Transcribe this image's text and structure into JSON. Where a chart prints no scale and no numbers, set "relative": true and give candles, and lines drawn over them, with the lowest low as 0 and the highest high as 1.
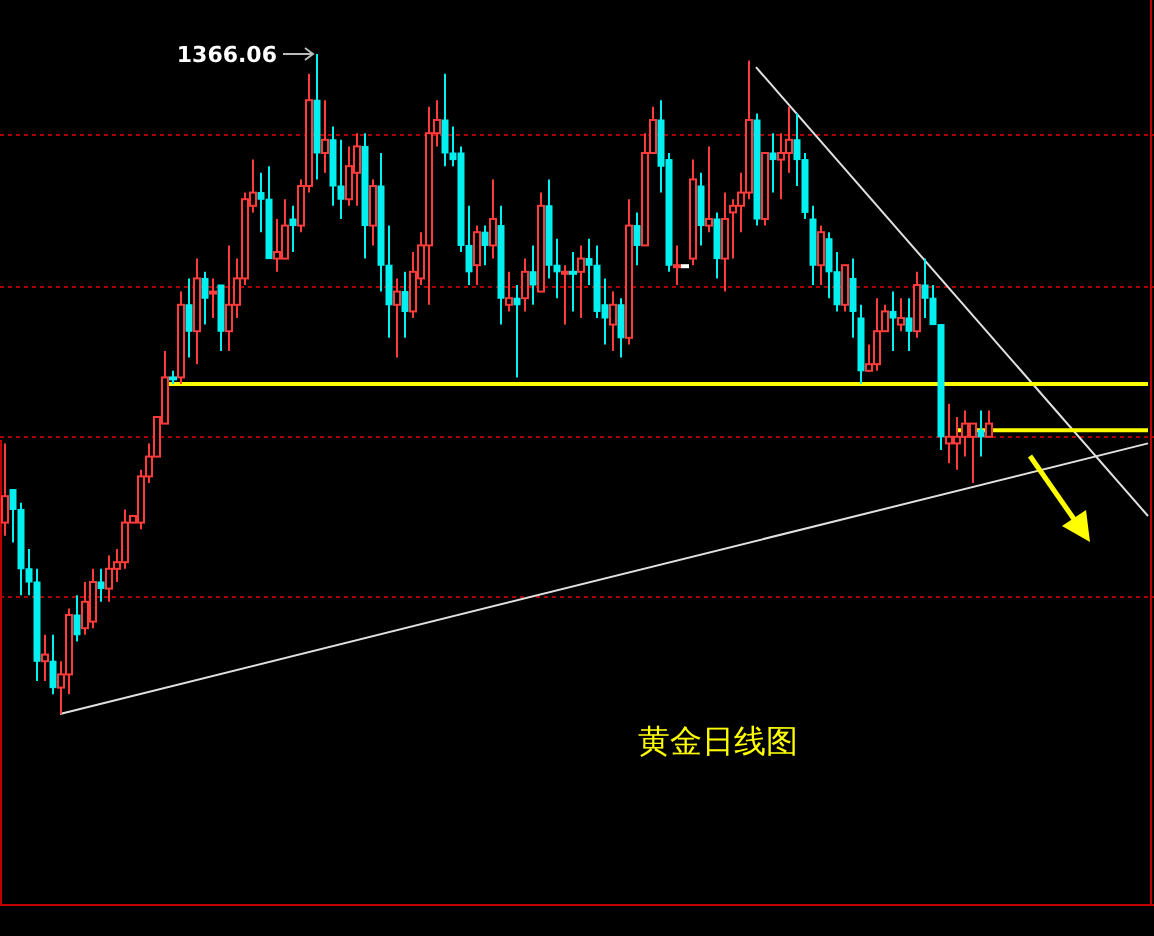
{
  "chart_data": {
    "type": "candlestick",
    "title": "黄金日线图",
    "relative": true,
    "categories": [
      null,
      null,
      null,
      null,
      null,
      null,
      null,
      null,
      null,
      null,
      null,
      null,
      null,
      null,
      null,
      null,
      null,
      null,
      null,
      null,
      null,
      null,
      null,
      null,
      null,
      null,
      null,
      null,
      null,
      null,
      null,
      null,
      null,
      null,
      null,
      null,
      null,
      null,
      null,
      null,
      null,
      null,
      null,
      null,
      null,
      null,
      null,
      null,
      null,
      null,
      null,
      null,
      null,
      null,
      null,
      null,
      null,
      null,
      null,
      null,
      null,
      null,
      null,
      null,
      null,
      null,
      null,
      null,
      null,
      null,
      null,
      null,
      null,
      null,
      null,
      null,
      null,
      null,
      null,
      null,
      null,
      null,
      null,
      null,
      null,
      null,
      null,
      null,
      null,
      null,
      null,
      null,
      null,
      null,
      null,
      null,
      null,
      null,
      null,
      null,
      null,
      null,
      null,
      null,
      null,
      null,
      null,
      null,
      null,
      null,
      null,
      null,
      null,
      null,
      null,
      null,
      null,
      null,
      null,
      null,
      null,
      null,
      null,
      null,
      null,
      null,
      null,
      null,
      null,
      null,
      null,
      null,
      null,
      null,
      null,
      null,
      null,
      null,
      null,
      null,
      null,
      null,
      null,
      null
    ],
    "ohlc": [
      [
        0.29,
        0.41,
        0.27,
        0.33
      ],
      [
        0.34,
        0.34,
        0.26,
        0.31
      ],
      [
        0.31,
        0.32,
        0.18,
        0.22
      ],
      [
        0.22,
        0.25,
        0.18,
        0.2
      ],
      [
        0.2,
        0.22,
        0.05,
        0.08
      ],
      [
        0.08,
        0.12,
        0.05,
        0.09
      ],
      [
        0.08,
        0.12,
        0.03,
        0.04
      ],
      [
        0.04,
        0.08,
        0,
        0.06
      ],
      [
        0.06,
        0.16,
        0.03,
        0.15
      ],
      [
        0.15,
        0.18,
        0.11,
        0.12
      ],
      [
        0.13,
        0.2,
        0.12,
        0.17
      ],
      [
        0.14,
        0.22,
        0.13,
        0.2
      ],
      [
        0.2,
        0.22,
        0.17,
        0.19
      ],
      [
        0.19,
        0.24,
        0.17,
        0.22
      ],
      [
        0.22,
        0.25,
        0.2,
        0.23
      ],
      [
        0.23,
        0.31,
        0.22,
        0.29
      ],
      [
        0.29,
        0.3,
        0.29,
        0.3
      ],
      [
        0.29,
        0.37,
        0.28,
        0.36
      ],
      [
        0.36,
        0.41,
        0.35,
        0.39
      ],
      [
        0.39,
        0.45,
        0.39,
        0.45
      ],
      [
        0.44,
        0.55,
        0.44,
        0.51
      ],
      [
        0.51,
        0.52,
        0.5,
        0.51
      ],
      [
        0.51,
        0.64,
        0.5,
        0.62
      ],
      [
        0.62,
        0.66,
        0.54,
        0.58
      ],
      [
        0.58,
        0.69,
        0.53,
        0.66
      ],
      [
        0.66,
        0.67,
        0.59,
        0.63
      ],
      [
        0.64,
        0.66,
        0.6,
        0.64
      ],
      [
        0.65,
        0.65,
        0.55,
        0.58
      ],
      [
        0.58,
        0.71,
        0.55,
        0.62
      ],
      [
        0.62,
        0.69,
        0.6,
        0.66
      ],
      [
        0.66,
        0.79,
        0.65,
        0.78
      ],
      [
        0.77,
        0.84,
        0.76,
        0.79
      ],
      [
        0.79,
        0.82,
        0.73,
        0.78
      ],
      [
        0.78,
        0.83,
        0.69,
        0.69
      ],
      [
        0.69,
        0.75,
        0.67,
        0.7
      ],
      [
        0.69,
        0.78,
        0.69,
        0.74
      ],
      [
        0.75,
        0.77,
        0.7,
        0.74
      ],
      [
        0.74,
        0.81,
        0.73,
        0.8
      ],
      [
        0.8,
        0.97,
        0.79,
        0.93
      ],
      [
        0.93,
        1,
        0.81,
        0.85
      ],
      [
        0.85,
        0.93,
        0.82,
        0.87
      ],
      [
        0.87,
        0.89,
        0.77,
        0.8
      ],
      [
        0.8,
        0.87,
        0.75,
        0.78
      ],
      [
        0.78,
        0.86,
        0.77,
        0.83
      ],
      [
        0.82,
        0.88,
        0.77,
        0.86
      ],
      [
        0.86,
        0.88,
        0.69,
        0.74
      ],
      [
        0.74,
        0.81,
        0.71,
        0.8
      ],
      [
        0.8,
        0.85,
        0.64,
        0.68
      ],
      [
        0.68,
        0.74,
        0.57,
        0.62
      ],
      [
        0.62,
        0.66,
        0.54,
        0.64
      ],
      [
        0.64,
        0.67,
        0.57,
        0.61
      ],
      [
        0.61,
        0.7,
        0.6,
        0.67
      ],
      [
        0.66,
        0.73,
        0.65,
        0.71
      ],
      [
        0.71,
        0.92,
        0.62,
        0.88
      ],
      [
        0.88,
        0.93,
        0.86,
        0.9
      ],
      [
        0.9,
        0.97,
        0.83,
        0.85
      ],
      [
        0.85,
        0.89,
        0.83,
        0.84
      ],
      [
        0.85,
        0.86,
        0.7,
        0.71
      ],
      [
        0.71,
        0.77,
        0.65,
        0.67
      ],
      [
        0.68,
        0.74,
        0.65,
        0.73
      ],
      [
        0.73,
        0.74,
        0.68,
        0.71
      ],
      [
        0.71,
        0.81,
        0.69,
        0.75
      ],
      [
        0.74,
        0.77,
        0.59,
        0.63
      ],
      [
        0.62,
        0.67,
        0.61,
        0.63
      ],
      [
        0.63,
        0.65,
        0.51,
        0.62
      ],
      [
        0.63,
        0.69,
        0.61,
        0.67
      ],
      [
        0.67,
        0.71,
        0.62,
        0.65
      ],
      [
        0.64,
        0.79,
        0.64,
        0.77
      ],
      [
        0.77,
        0.81,
        0.66,
        0.68
      ],
      [
        0.68,
        0.72,
        0.63,
        0.67
      ],
      [
        0.67,
        0.68,
        0.59,
        0.67
      ],
      [
        0.67,
        0.7,
        0.61,
        0.67
      ],
      [
        0.67,
        0.71,
        0.6,
        0.69
      ],
      [
        0.69,
        0.72,
        0.65,
        0.68
      ],
      [
        0.68,
        0.71,
        0.6,
        0.61
      ],
      [
        0.62,
        0.66,
        0.56,
        0.6
      ],
      [
        0.59,
        0.64,
        0.55,
        0.62
      ],
      [
        0.62,
        0.63,
        0.54,
        0.57
      ],
      [
        0.57,
        0.78,
        0.56,
        0.74
      ],
      [
        0.74,
        0.76,
        0.68,
        0.71
      ],
      [
        0.71,
        0.88,
        0.71,
        0.85
      ],
      [
        0.85,
        0.92,
        0.85,
        0.9
      ],
      [
        0.9,
        0.93,
        0.79,
        0.83
      ],
      [
        0.84,
        0.85,
        0.67,
        0.68
      ],
      [
        0.68,
        0.71,
        0.65,
        0.68
      ],
      [
        0.68,
        0.68,
        0.68,
        0.68
      ],
      [
        0.69,
        0.84,
        0.68,
        0.81
      ],
      [
        0.8,
        0.82,
        0.71,
        0.74
      ],
      [
        0.74,
        0.86,
        0.73,
        0.75
      ],
      [
        0.75,
        0.76,
        0.66,
        0.69
      ],
      [
        0.69,
        0.79,
        0.64,
        0.75
      ],
      [
        0.76,
        0.78,
        0.69,
        0.77
      ],
      [
        0.77,
        0.82,
        0.73,
        0.79
      ],
      [
        0.79,
        0.99,
        0.78,
        0.9
      ],
      [
        0.9,
        0.91,
        0.74,
        0.75
      ],
      [
        0.75,
        0.85,
        0.74,
        0.85
      ],
      [
        0.85,
        0.88,
        0.79,
        0.84
      ],
      [
        0.84,
        0.88,
        0.78,
        0.85
      ],
      [
        0.85,
        0.92,
        0.82,
        0.87
      ],
      [
        0.87,
        0.91,
        0.8,
        0.84
      ],
      [
        0.84,
        0.85,
        0.75,
        0.76
      ],
      [
        0.75,
        0.77,
        0.65,
        0.68
      ],
      [
        0.68,
        0.74,
        0.65,
        0.73
      ],
      [
        0.72,
        0.73,
        0.63,
        0.67
      ],
      [
        0.67,
        0.7,
        0.61,
        0.62
      ],
      [
        0.62,
        0.68,
        0.61,
        0.68
      ],
      [
        0.66,
        0.69,
        0.57,
        0.61
      ],
      [
        0.6,
        0.62,
        0.5,
        0.52
      ],
      [
        0.52,
        0.56,
        0.52,
        0.53
      ],
      [
        0.53,
        0.63,
        0.52,
        0.58
      ],
      [
        0.58,
        0.62,
        0.58,
        0.61
      ],
      [
        0.61,
        0.64,
        0.55,
        0.6
      ],
      [
        0.59,
        0.63,
        0.58,
        0.6
      ],
      [
        0.6,
        0.63,
        0.55,
        0.58
      ],
      [
        0.58,
        0.67,
        0.57,
        0.65
      ],
      [
        0.65,
        0.69,
        0.6,
        0.63
      ],
      [
        0.63,
        0.65,
        0.59,
        0.59
      ],
      [
        0.59,
        0.59,
        0.4,
        0.42
      ],
      [
        0.41,
        0.47,
        0.38,
        0.42
      ],
      [
        0.41,
        0.45,
        0.37,
        0.42
      ],
      [
        0.42,
        0.46,
        0.39,
        0.44
      ],
      [
        0.42,
        0.44,
        0.35,
        0.44
      ],
      [
        0.43,
        0.46,
        0.39,
        0.42
      ],
      [
        0.42,
        0.46,
        0.42,
        0.44
      ],
      null,
      null,
      null,
      null,
      null,
      null,
      null,
      null,
      null,
      null,
      null,
      null,
      null,
      null,
      null,
      null,
      null,
      null,
      null,
      null
    ],
    "colors": [
      "#ff3b3b",
      "#00f0f0",
      "#00f0f0",
      "#00f0f0",
      "#00f0f0",
      "#ff3b3b",
      "#00f0f0",
      "#ff3b3b",
      "#ff3b3b",
      "#00f0f0",
      "#ff3b3b",
      "#ff3b3b",
      "#00f0f0",
      "#ff3b3b",
      "#ff3b3b",
      "#ff3b3b",
      "#ff3b3b",
      "#ff3b3b",
      "#ff3b3b",
      "#ff3b3b",
      "#ff3b3b",
      "#00f0f0",
      "#ff3b3b",
      "#00f0f0",
      "#ff3b3b",
      "#00f0f0",
      "#ff3b3b",
      "#00f0f0",
      "#ff3b3b",
      "#ff3b3b",
      "#ff3b3b",
      "#ff3b3b",
      "#00f0f0",
      "#00f0f0",
      "#ff3b3b",
      "#ff3b3b",
      "#00f0f0",
      "#ff3b3b",
      "#ff3b3b",
      "#00f0f0",
      "#ff3b3b",
      "#00f0f0",
      "#00f0f0",
      "#ff3b3b",
      "#ff3b3b",
      "#00f0f0",
      "#ff3b3b",
      "#00f0f0",
      "#00f0f0",
      "#ff3b3b",
      "#00f0f0",
      "#ff3b3b",
      "#ff3b3b",
      "#ff3b3b",
      "#ff3b3b",
      "#00f0f0",
      "#00f0f0",
      "#00f0f0",
      "#00f0f0",
      "#ff3b3b",
      "#00f0f0",
      "#ff3b3b",
      "#00f0f0",
      "#ff3b3b",
      "#00f0f0",
      "#ff3b3b",
      "#00f0f0",
      "#ff3b3b",
      "#00f0f0",
      "#00f0f0",
      "#ff3b3b",
      "#00f0f0",
      "#ff3b3b",
      "#00f0f0",
      "#00f0f0",
      "#00f0f0",
      "#ff3b3b",
      "#00f0f0",
      "#ff3b3b",
      "#00f0f0",
      "#ff3b3b",
      "#ff3b3b",
      "#00f0f0",
      "#00f0f0",
      "#ff3b3b",
      "#ffffff",
      "#ff3b3b",
      "#00f0f0",
      "#ff3b3b",
      "#00f0f0",
      "#ff3b3b",
      "#ff3b3b",
      "#ff3b3b",
      "#ff3b3b",
      "#00f0f0",
      "#ff3b3b",
      "#00f0f0",
      "#ff3b3b",
      "#ff3b3b",
      "#00f0f0",
      "#00f0f0",
      "#00f0f0",
      "#ff3b3b",
      "#00f0f0",
      "#00f0f0",
      "#ff3b3b",
      "#00f0f0",
      "#00f0f0",
      "#ff3b3b",
      "#ff3b3b",
      "#ff3b3b",
      "#00f0f0",
      "#ff3b3b",
      "#00f0f0",
      "#ff3b3b",
      "#00f0f0",
      "#00f0f0",
      "#00f0f0",
      "#ff3b3b",
      "#ff3b3b",
      "#ff3b3b",
      "#ff3b3b",
      "#00f0f0",
      "#ff3b3b",
      null,
      null,
      null,
      null,
      null,
      null,
      null,
      null,
      null,
      null,
      null,
      null,
      null,
      null,
      null,
      null,
      null,
      null,
      null,
      null
    ],
    "series": [
      {
        "type": "line",
        "color": "#e0e0e0",
        "values": [
          null,
          null,
          null,
          null,
          null,
          null,
          null,
          0.0,
          null,
          null,
          null,
          null,
          null,
          null,
          null,
          null,
          null,
          null,
          null,
          null,
          null,
          null,
          null,
          null,
          null,
          null,
          null,
          null,
          null,
          null,
          null,
          null,
          null,
          null,
          null,
          null,
          null,
          null,
          null,
          null,
          null,
          null,
          null,
          null,
          null,
          null,
          null,
          null,
          null,
          null,
          null,
          null,
          null,
          null,
          null,
          null,
          null,
          null,
          null,
          null,
          null,
          null,
          null,
          null,
          null,
          null,
          null,
          null,
          null,
          null,
          null,
          null,
          null,
          null,
          null,
          null,
          null,
          null,
          null,
          null,
          null,
          null,
          null,
          null,
          null,
          null,
          null,
          null,
          null,
          null,
          null,
          null,
          null,
          null,
          null,
          null,
          null,
          null,
          null,
          null,
          null,
          null,
          null,
          null,
          null,
          null,
          null,
          null,
          null,
          null,
          null,
          null,
          null,
          null,
          null,
          null,
          null,
          null,
          null,
          null,
          null,
          null,
          null,
          null,
          null,
          null,
          null,
          null,
          null,
          null,
          null,
          null,
          null,
          null,
          null,
          null,
          null,
          null,
          null,
          null,
          null,
          null,
          null,
          0.41
        ]
      },
      {
        "type": "line",
        "color": "#e0e0e0",
        "values": [
          null,
          null,
          null,
          null,
          null,
          null,
          null,
          null,
          null,
          null,
          null,
          null,
          null,
          null,
          null,
          null,
          null,
          null,
          null,
          null,
          null,
          null,
          null,
          null,
          null,
          null,
          null,
          null,
          null,
          null,
          null,
          null,
          null,
          null,
          null,
          null,
          null,
          null,
          null,
          null,
          null,
          null,
          null,
          null,
          null,
          null,
          null,
          null,
          null,
          null,
          null,
          null,
          null,
          null,
          null,
          null,
          null,
          null,
          null,
          null,
          null,
          null,
          null,
          null,
          null,
          null,
          null,
          null,
          null,
          null,
          null,
          null,
          null,
          null,
          null,
          null,
          null,
          null,
          null,
          null,
          null,
          null,
          null,
          null,
          null,
          null,
          null,
          null,
          null,
          null,
          null,
          null,
          null,
          null,
          0.98,
          null,
          null,
          null,
          null,
          null,
          null,
          null,
          null,
          null,
          null,
          null,
          null,
          null,
          null,
          null,
          null,
          null,
          null,
          null,
          null,
          null,
          null,
          null,
          null,
          null,
          null,
          null,
          null,
          null,
          null,
          null,
          null,
          null,
          null,
          null,
          null,
          null,
          null,
          null,
          null,
          null,
          null,
          null,
          null,
          null,
          null,
          null,
          null,
          0.3
        ]
      },
      {
        "type": "line",
        "color": "#ffff00",
        "values": [
          null,
          null,
          null,
          null,
          null,
          null,
          null,
          null,
          null,
          null,
          null,
          null,
          null,
          null,
          null,
          null,
          null,
          null,
          null,
          null,
          0.5,
          null,
          null,
          null,
          null,
          null,
          null,
          null,
          null,
          null,
          null,
          null,
          null,
          null,
          null,
          null,
          null,
          null,
          null,
          null,
          null,
          null,
          null,
          null,
          null,
          null,
          null,
          null,
          null,
          null,
          null,
          null,
          null,
          null,
          null,
          null,
          null,
          null,
          null,
          null,
          null,
          null,
          null,
          null,
          null,
          null,
          null,
          null,
          null,
          null,
          null,
          null,
          null,
          null,
          null,
          null,
          null,
          null,
          null,
          null,
          null,
          null,
          null,
          null,
          null,
          null,
          null,
          null,
          null,
          null,
          null,
          null,
          null,
          null,
          null,
          null,
          null,
          null,
          null,
          null,
          null,
          null,
          null,
          null,
          null,
          null,
          null,
          null,
          null,
          null,
          null,
          null,
          null,
          null,
          null,
          null,
          null,
          null,
          null,
          null,
          null,
          null,
          null,
          null,
          null,
          null,
          null,
          null,
          null,
          null,
          null,
          null,
          null,
          null,
          null,
          null,
          null,
          null,
          null,
          null,
          null,
          null,
          null,
          0.5
        ]
      },
      {
        "type": "line",
        "color": "#ffff00",
        "values": [
          null,
          null,
          null,
          null,
          null,
          null,
          null,
          null,
          null,
          null,
          null,
          null,
          null,
          null,
          null,
          null,
          null,
          null,
          null,
          null,
          null,
          null,
          null,
          null,
          null,
          null,
          null,
          null,
          null,
          null,
          null,
          null,
          null,
          null,
          null,
          null,
          null,
          null,
          null,
          null,
          null,
          null,
          null,
          null,
          null,
          null,
          null,
          null,
          null,
          null,
          null,
          null,
          null,
          null,
          null,
          null,
          null,
          null,
          null,
          null,
          null,
          null,
          null,
          null,
          null,
          null,
          null,
          null,
          null,
          null,
          null,
          null,
          null,
          null,
          null,
          null,
          null,
          null,
          null,
          null,
          null,
          null,
          null,
          null,
          null,
          null,
          null,
          null,
          null,
          null,
          null,
          null,
          null,
          null,
          null,
          null,
          null,
          null,
          null,
          null,
          null,
          null,
          null,
          null,
          null,
          null,
          null,
          null,
          null,
          null,
          null,
          null,
          null,
          null,
          null,
          null,
          null,
          null,
          null,
          0.43,
          null,
          null,
          null,
          null,
          null,
          null,
          null,
          null,
          null,
          null,
          null,
          null,
          null,
          null,
          null,
          null,
          null,
          null,
          null,
          null,
          null,
          null,
          null,
          0.43
        ]
      }
    ],
    "ref_lines": [
      {
        "axis": "y",
        "value": 0.88,
        "color": "#b00000",
        "line_style": "dotted"
      },
      {
        "axis": "y",
        "value": 0.65,
        "color": "#b00000",
        "line_style": "dotted"
      },
      {
        "axis": "y",
        "value": 0.42,
        "color": "#b00000",
        "line_style": "dotted"
      },
      {
        "axis": "y",
        "value": 0.18,
        "color": "#b00000",
        "line_style": "dotted"
      }
    ],
    "annotations": [
      "1366.06"
    ]
  }
}
